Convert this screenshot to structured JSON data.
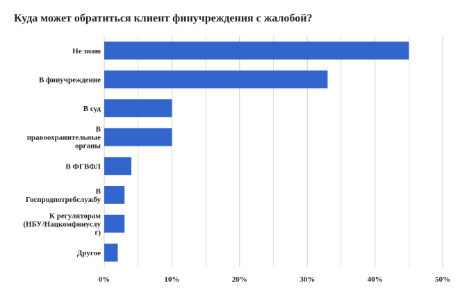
{
  "chart_data": {
    "type": "bar",
    "orientation": "horizontal",
    "title": "Куда может обратиться клиент финучреждения с жалобой?",
    "categories": [
      "Не знаю",
      "В финучреждение",
      "В суд",
      "В правоохранительные органы",
      "В ФГВФЛ",
      "В Госпродпотребслужбу",
      "К регуляторам (НБУ/Нацкомфинуслуг)",
      "Другое"
    ],
    "category_lines": [
      [
        "Не знаю"
      ],
      [
        "В финучреждение"
      ],
      [
        "В суд"
      ],
      [
        "В",
        "правоохранительные",
        "органы"
      ],
      [
        "В ФГВФЛ"
      ],
      [
        "В",
        "Госпродпотребслужбу"
      ],
      [
        "К регуляторам",
        "(НБУ/Нацкомфинуслу",
        "г)"
      ],
      [
        "Другое"
      ]
    ],
    "values": [
      45,
      33,
      10,
      10,
      4,
      3,
      3,
      2
    ],
    "xlim": [
      0,
      50
    ],
    "xticks": [
      0,
      10,
      20,
      30,
      40,
      50
    ],
    "xtick_labels": [
      "0%",
      "10%",
      "20%",
      "30%",
      "40%",
      "50%"
    ],
    "grid": true,
    "bar_color": "#3366cc",
    "grid_color": "#cccccc",
    "xlabel": "",
    "ylabel": ""
  }
}
